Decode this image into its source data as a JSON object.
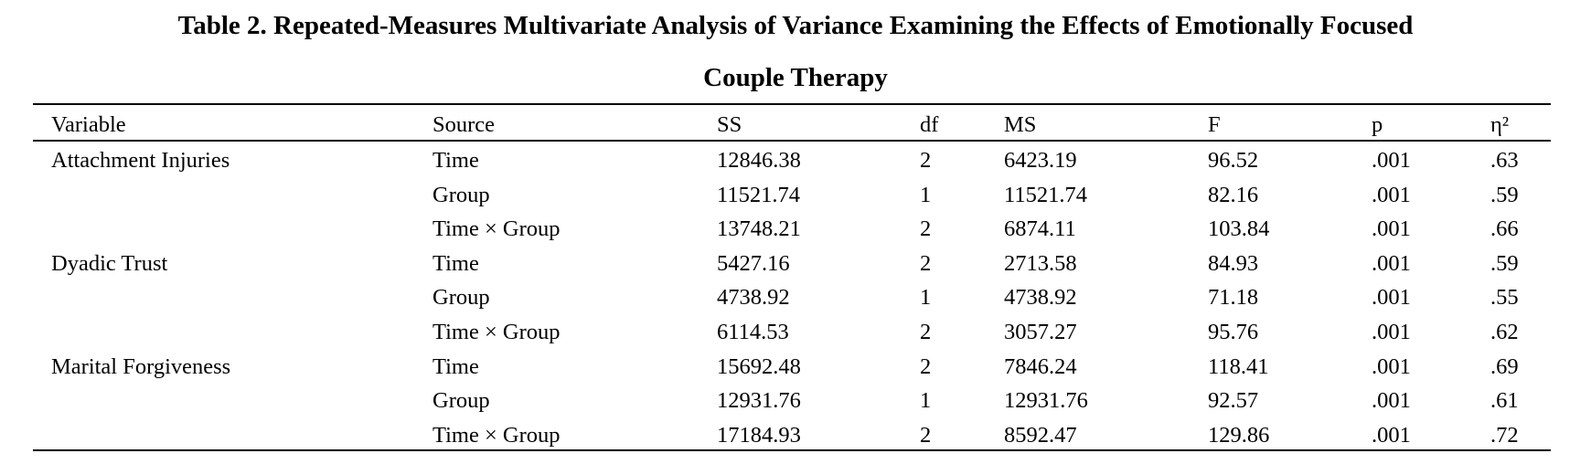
{
  "title": "Table 2. Repeated-Measures Multivariate Analysis of Variance Examining the Effects of Emotionally Focused Couple Therapy",
  "table": {
    "columns": [
      "Variable",
      "Source",
      "SS",
      "df",
      "MS",
      "F",
      "p",
      "η²"
    ],
    "groups": [
      {
        "variable": "Attachment Injuries",
        "rows": [
          [
            "Time",
            "12846.38",
            "2",
            "6423.19",
            "96.52",
            ".001",
            ".63"
          ],
          [
            "Group",
            "11521.74",
            "1",
            "11521.74",
            "82.16",
            ".001",
            ".59"
          ],
          [
            "Time × Group",
            "13748.21",
            "2",
            "6874.11",
            "103.84",
            ".001",
            ".66"
          ]
        ]
      },
      {
        "variable": "Dyadic Trust",
        "rows": [
          [
            "Time",
            "5427.16",
            "2",
            "2713.58",
            "84.93",
            ".001",
            ".59"
          ],
          [
            "Group",
            "4738.92",
            "1",
            "4738.92",
            "71.18",
            ".001",
            ".55"
          ],
          [
            "Time × Group",
            "6114.53",
            "2",
            "3057.27",
            "95.76",
            ".001",
            ".62"
          ]
        ]
      },
      {
        "variable": "Marital Forgiveness",
        "rows": [
          [
            "Time",
            "15692.48",
            "2",
            "7846.24",
            "118.41",
            ".001",
            ".69"
          ],
          [
            "Group",
            "12931.76",
            "1",
            "12931.76",
            "92.57",
            ".001",
            ".61"
          ],
          [
            "Time × Group",
            "17184.93",
            "2",
            "8592.47",
            "129.86",
            ".001",
            ".72"
          ]
        ]
      }
    ]
  }
}
